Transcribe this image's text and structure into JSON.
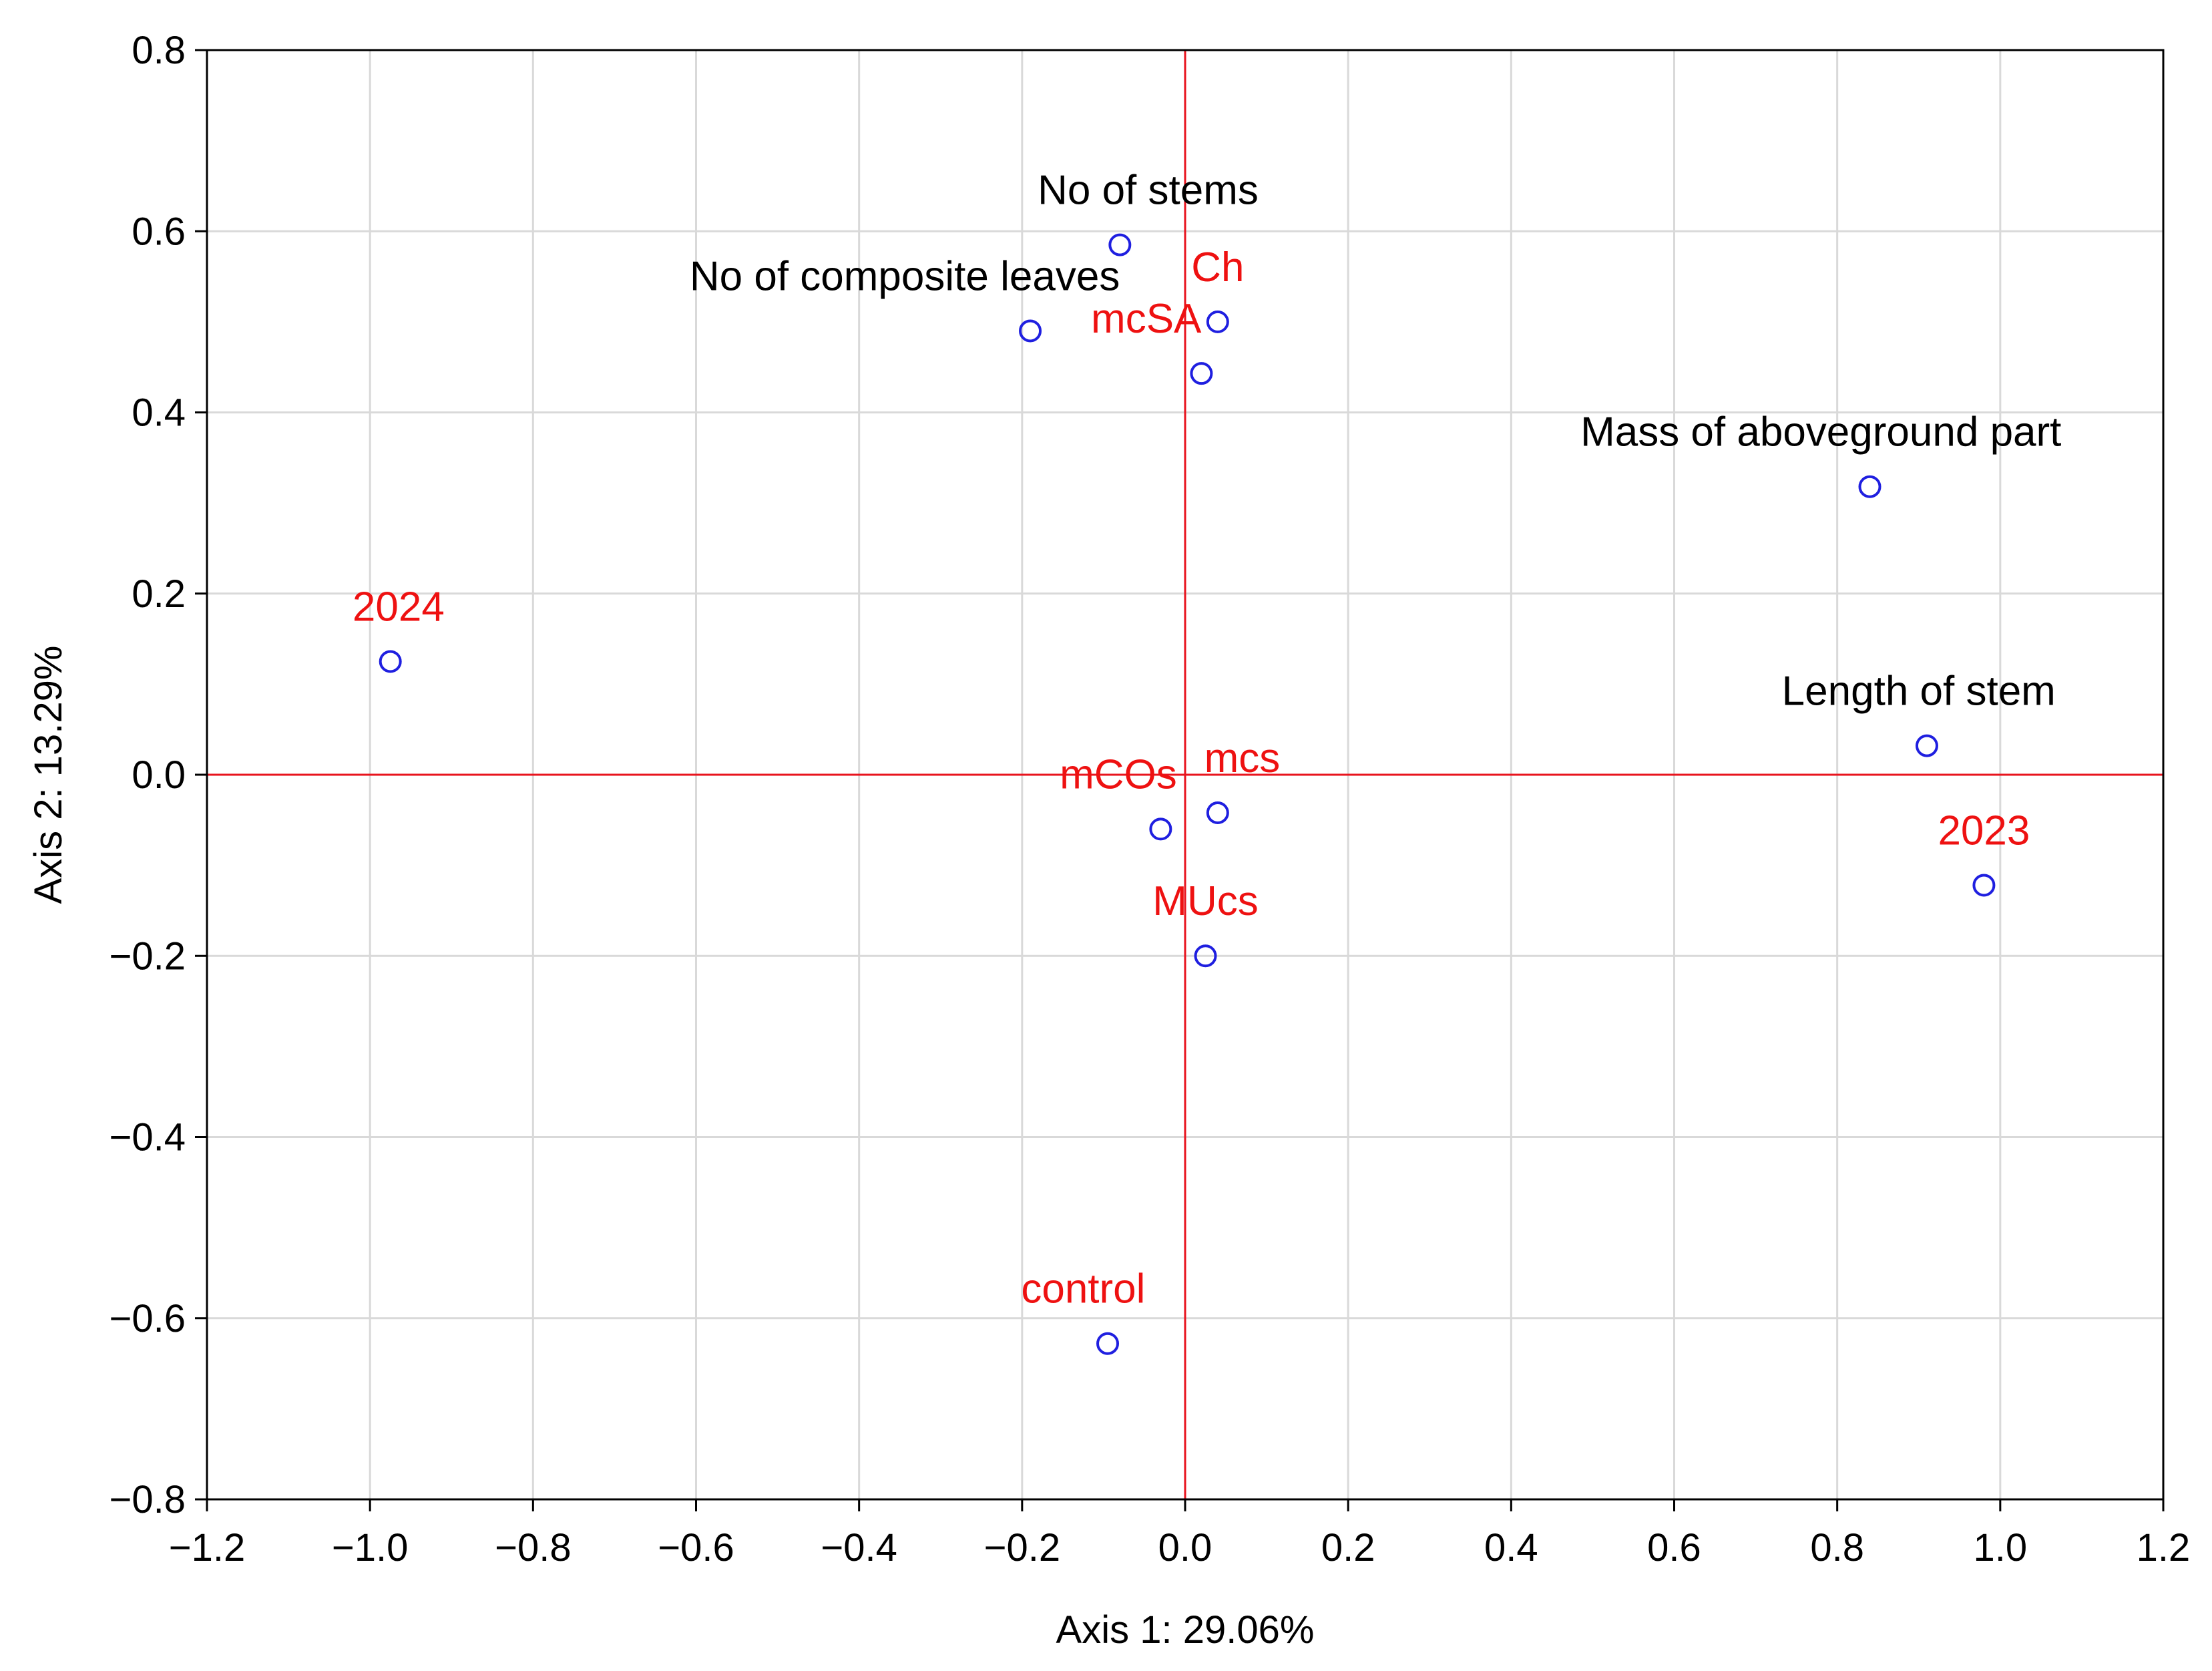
{
  "chart_data": {
    "type": "scatter",
    "xlabel": "Axis 1: 29.06%",
    "ylabel": "Axis 2: 13.29%",
    "xlim": [
      -1.2,
      1.2
    ],
    "ylim": [
      -0.8,
      0.8
    ],
    "grid": true,
    "x_ticks": [
      -1.2,
      -1.0,
      -0.8,
      -0.6,
      -0.4,
      -0.2,
      0.0,
      0.2,
      0.4,
      0.6,
      0.8,
      1.0,
      1.2
    ],
    "x_tick_labels": [
      "−1.2",
      "−1.0",
      "−0.8",
      "−0.6",
      "−0.4",
      "−0.2",
      "0.0",
      "0.2",
      "0.4",
      "0.6",
      "0.8",
      "1.0",
      "1.2"
    ],
    "y_ticks": [
      -0.8,
      -0.6,
      -0.4,
      -0.2,
      0.0,
      0.2,
      0.4,
      0.6,
      0.8
    ],
    "y_tick_labels": [
      "−0.8",
      "−0.6",
      "−0.4",
      "−0.2",
      "0.0",
      "0.2",
      "0.4",
      "0.6",
      "0.8"
    ],
    "reference_lines": {
      "x": 0,
      "y": 0,
      "color": "#e8141e"
    },
    "marker": {
      "shape": "circle",
      "fill": "none",
      "stroke": "#1f1fe0"
    },
    "label_colors": {
      "variable": "#000000",
      "category": "#ee1111"
    },
    "points": [
      {
        "label": "No of stems",
        "x": -0.08,
        "y": 0.585,
        "kind": "variable",
        "anchor": "end",
        "dx": 0.17,
        "dy": 0.045
      },
      {
        "label": "No of composite leaves",
        "x": -0.19,
        "y": 0.49,
        "kind": "variable",
        "anchor": "end",
        "dx": 0.11,
        "dy": 0.045
      },
      {
        "label": "Ch",
        "x": 0.04,
        "y": 0.5,
        "kind": "category",
        "anchor": "middle",
        "dx": 0.0,
        "dy": 0.045
      },
      {
        "label": "mcSA",
        "x": 0.02,
        "y": 0.443,
        "kind": "category",
        "anchor": "end",
        "dx": 0.0,
        "dy": 0.045
      },
      {
        "label": "Mass of aboveground part",
        "x": 0.84,
        "y": 0.318,
        "kind": "variable",
        "anchor": "middle",
        "dx": -0.06,
        "dy": 0.045
      },
      {
        "label": "2024",
        "x": -0.975,
        "y": 0.125,
        "kind": "category",
        "anchor": "middle",
        "dx": 0.01,
        "dy": 0.045
      },
      {
        "label": "Length of stem",
        "x": 0.91,
        "y": 0.032,
        "kind": "variable",
        "anchor": "middle",
        "dx": -0.01,
        "dy": 0.045
      },
      {
        "label": "mcs",
        "x": 0.04,
        "y": -0.042,
        "kind": "category",
        "anchor": "middle",
        "dx": 0.03,
        "dy": 0.045
      },
      {
        "label": "mCOs",
        "x": -0.03,
        "y": -0.06,
        "kind": "category",
        "anchor": "end",
        "dx": 0.02,
        "dy": 0.045
      },
      {
        "label": "2023",
        "x": 0.98,
        "y": -0.122,
        "kind": "category",
        "anchor": "middle",
        "dx": 0.0,
        "dy": 0.045
      },
      {
        "label": "MUcs",
        "x": 0.025,
        "y": -0.2,
        "kind": "category",
        "anchor": "middle",
        "dx": 0.0,
        "dy": 0.045
      },
      {
        "label": "control",
        "x": -0.095,
        "y": -0.628,
        "kind": "category",
        "anchor": "middle",
        "dx": -0.03,
        "dy": 0.045
      }
    ]
  }
}
